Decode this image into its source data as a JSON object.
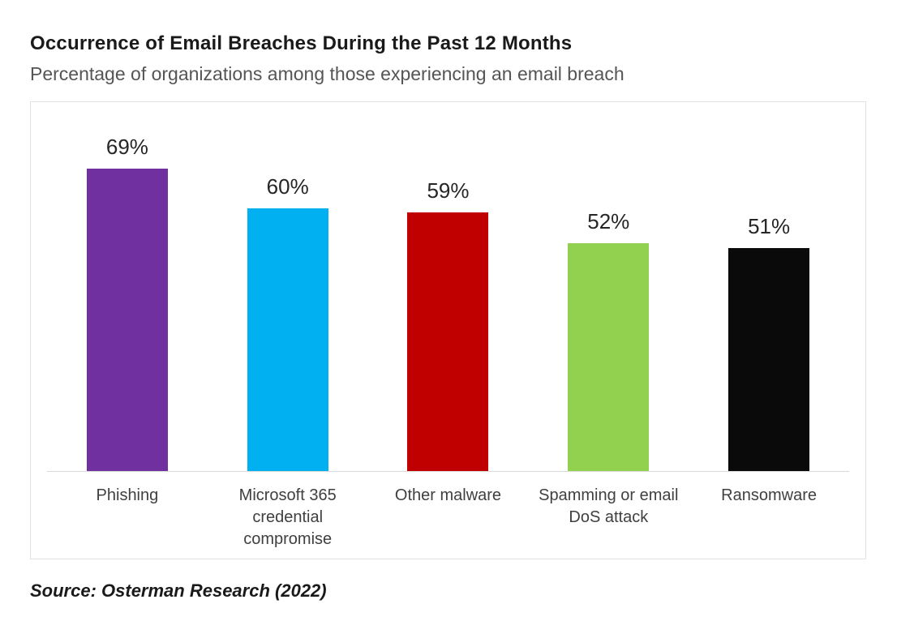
{
  "header": {
    "title": "Occurrence of Email Breaches During the Past 12 Months",
    "subtitle": "Percentage of organizations among those experiencing an email breach"
  },
  "chart_data": {
    "type": "bar",
    "title": "Occurrence of Email Breaches During the Past 12 Months",
    "subtitle": "Percentage of organizations among those experiencing an email breach",
    "categories": [
      "Phishing",
      "Microsoft 365 credential compromise",
      "Other malware",
      "Spamming or email DoS attack",
      "Ransomware"
    ],
    "values": [
      69,
      60,
      59,
      52,
      51
    ],
    "value_labels": [
      "69%",
      "60%",
      "59%",
      "52%",
      "51%"
    ],
    "bar_colors": [
      "#7030A0",
      "#00B0F0",
      "#C00000",
      "#92D050",
      "#0A0A0A"
    ],
    "xlabel": "",
    "ylabel": "",
    "ylim": [
      0,
      80
    ],
    "grid": false,
    "legend": false
  },
  "footer": {
    "source": "Source: Osterman Research (2022)"
  }
}
